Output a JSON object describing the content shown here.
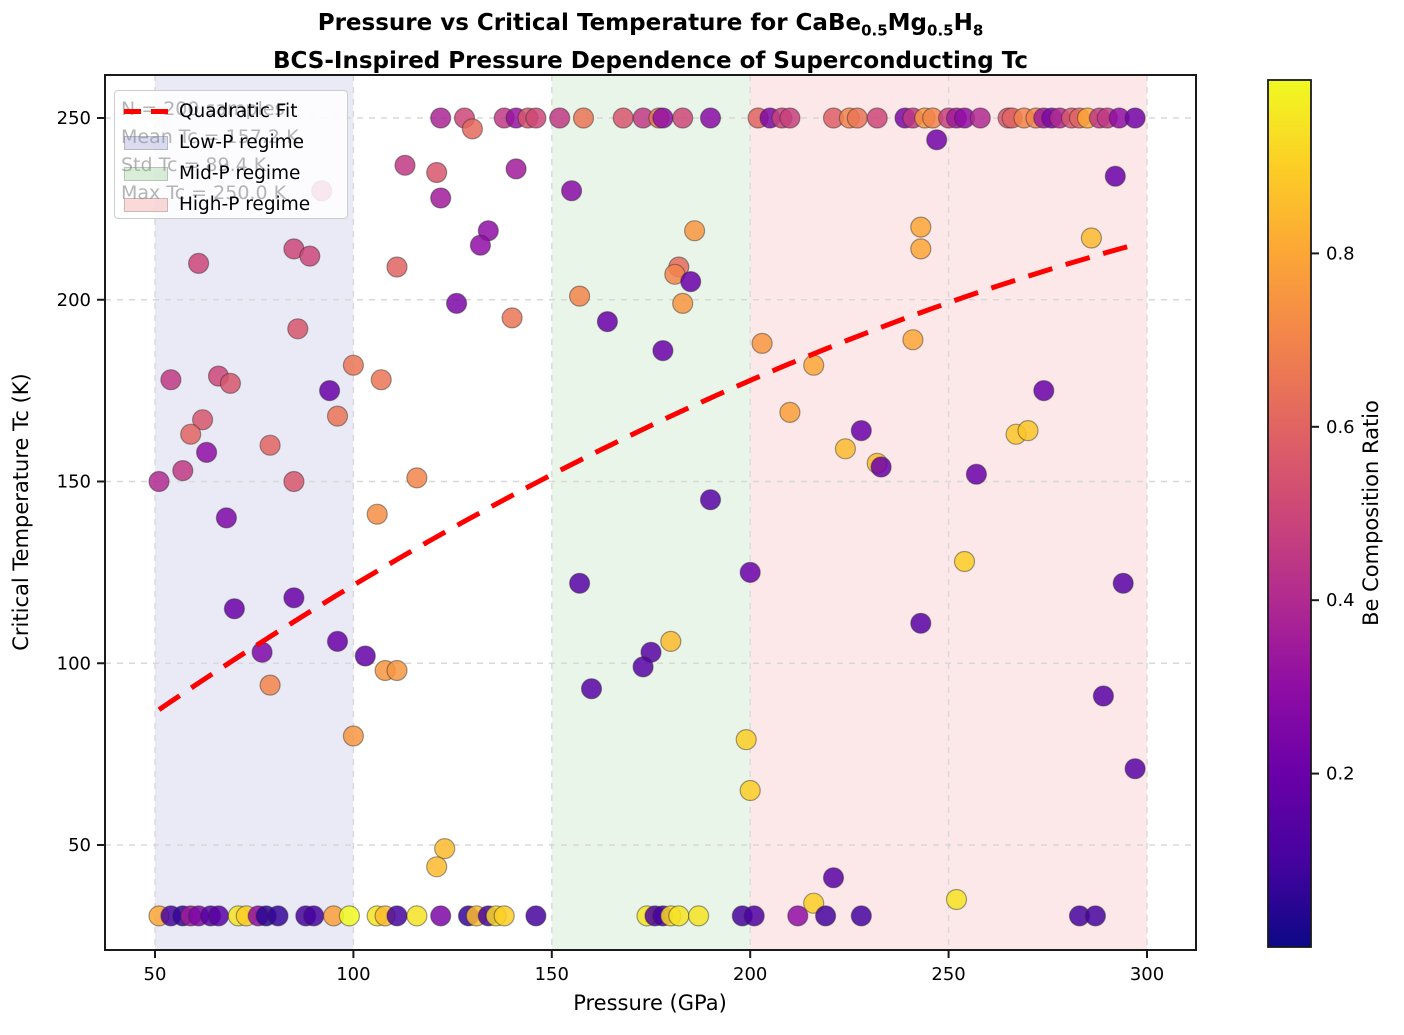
{
  "title": {
    "prefix": "Pressure vs Critical Temperature for CaBe",
    "sub1": "0.5",
    "mid1": "Mg",
    "sub2": "0.5",
    "mid2": "H",
    "sub3": "8",
    "line2": "BCS-Inspired Pressure Dependence of Superconducting Tc"
  },
  "axes": {
    "xlabel": "Pressure (GPa)",
    "ylabel": "Critical Temperature Tc (K)",
    "x_ticks": [
      50,
      100,
      150,
      200,
      250,
      300
    ],
    "y_ticks": [
      50,
      100,
      150,
      200,
      250
    ]
  },
  "colorbar": {
    "label": "Be Composition Ratio",
    "ticks": [
      0.2,
      0.4,
      0.6,
      0.8
    ],
    "range": [
      0,
      1
    ],
    "colormap": "plasma",
    "colormap_stops": [
      [
        0.0,
        "#0d0887"
      ],
      [
        0.1,
        "#46039f"
      ],
      [
        0.2,
        "#6a00a8"
      ],
      [
        0.3,
        "#8f0da4"
      ],
      [
        0.4,
        "#b12a90"
      ],
      [
        0.5,
        "#cc4778"
      ],
      [
        0.6,
        "#e16462"
      ],
      [
        0.7,
        "#f2844b"
      ],
      [
        0.8,
        "#fca636"
      ],
      [
        0.9,
        "#fcce25"
      ],
      [
        1.0,
        "#f0f921"
      ]
    ]
  },
  "legend": {
    "items": [
      {
        "label": "Quadratic Fit",
        "type": "line",
        "color": "#ff0000"
      },
      {
        "label": "Low-P regime",
        "type": "patch",
        "rgb": [
          136,
          136,
          204
        ],
        "alpha": 0.3
      },
      {
        "label": "Mid-P regime",
        "type": "patch",
        "rgb": [
          120,
          190,
          120
        ],
        "alpha": 0.28
      },
      {
        "label": "High-P regime",
        "type": "patch",
        "rgb": [
          240,
          128,
          128
        ],
        "alpha": 0.3
      }
    ]
  },
  "stats_box": {
    "lines": [
      "N = 200 samples",
      "Mean Tc = 157.2 K",
      "Std Tc = 89.4 K",
      "Max Tc = 250.0 K"
    ]
  },
  "chart_data": {
    "type": "scatter",
    "title": "Pressure vs Critical Temperature for CaBe0.5Mg0.5H8 — BCS-Inspired Pressure Dependence of Superconducting Tc",
    "xlabel": "Pressure (GPa)",
    "ylabel": "Critical Temperature Tc (K)",
    "xlim": [
      37.5,
      312.5
    ],
    "ylim": [
      21,
      262
    ],
    "grid": true,
    "color_label": "Be Composition Ratio",
    "color_range": [
      0,
      1
    ],
    "regions": [
      {
        "label": "Low-P regime",
        "x0": 50,
        "x1": 100,
        "rgb": [
          136,
          136,
          204
        ],
        "alpha": 0.18
      },
      {
        "label": "Mid-P regime",
        "x0": 150,
        "x1": 200,
        "rgb": [
          120,
          190,
          120
        ],
        "alpha": 0.16
      },
      {
        "label": "High-P regime",
        "x0": 200,
        "x1": 300,
        "rgb": [
          240,
          128,
          128
        ],
        "alpha": 0.18
      }
    ],
    "fit": {
      "label": "Quadratic Fit",
      "a": 47.0,
      "b": 0.835,
      "c": -0.000905,
      "p_min": 51,
      "p_max": 297,
      "color": "#ff0000"
    },
    "points_format": [
      "pressure_gpa",
      "tc_k",
      "be_ratio"
    ],
    "points": [
      [
        122,
        250,
        0.38
      ],
      [
        128,
        250,
        0.5
      ],
      [
        130,
        247,
        0.62
      ],
      [
        138,
        250,
        0.45
      ],
      [
        141,
        250,
        0.32
      ],
      [
        144,
        250,
        0.55
      ],
      [
        146,
        250,
        0.5
      ],
      [
        152,
        250,
        0.45
      ],
      [
        158,
        250,
        0.65
      ],
      [
        168,
        250,
        0.55
      ],
      [
        173,
        250,
        0.45
      ],
      [
        177,
        250,
        0.65
      ],
      [
        178,
        250,
        0.3
      ],
      [
        183,
        250,
        0.5
      ],
      [
        190,
        250,
        0.28
      ],
      [
        202,
        250,
        0.6
      ],
      [
        205,
        250,
        0.25
      ],
      [
        208,
        250,
        0.48
      ],
      [
        210,
        250,
        0.48
      ],
      [
        221,
        250,
        0.58
      ],
      [
        225,
        250,
        0.7
      ],
      [
        227,
        250,
        0.65
      ],
      [
        232,
        250,
        0.5
      ],
      [
        239,
        250,
        0.25
      ],
      [
        241,
        250,
        0.45
      ],
      [
        244,
        250,
        0.75
      ],
      [
        246,
        250,
        0.7
      ],
      [
        250,
        250,
        0.48
      ],
      [
        252,
        250,
        0.35
      ],
      [
        254,
        250,
        0.3
      ],
      [
        258,
        250,
        0.4
      ],
      [
        265,
        250,
        0.55
      ],
      [
        266,
        250,
        0.6
      ],
      [
        269,
        250,
        0.7
      ],
      [
        272,
        250,
        0.7
      ],
      [
        274,
        250,
        0.35
      ],
      [
        276,
        250,
        0.25
      ],
      [
        278,
        250,
        0.4
      ],
      [
        281,
        250,
        0.55
      ],
      [
        283,
        250,
        0.6
      ],
      [
        285,
        250,
        0.8
      ],
      [
        288,
        250,
        0.45
      ],
      [
        290,
        250,
        0.45
      ],
      [
        293,
        250,
        0.3
      ],
      [
        297,
        250,
        0.22
      ],
      [
        113,
        237,
        0.45
      ],
      [
        121,
        235,
        0.55
      ],
      [
        122,
        228,
        0.35
      ],
      [
        141,
        236,
        0.35
      ],
      [
        155,
        230,
        0.28
      ],
      [
        134,
        219,
        0.3
      ],
      [
        132,
        215,
        0.3
      ],
      [
        92,
        230,
        0.5
      ],
      [
        61,
        210,
        0.5
      ],
      [
        85,
        214,
        0.5
      ],
      [
        89,
        212,
        0.5
      ],
      [
        111,
        209,
        0.6
      ],
      [
        126,
        199,
        0.25
      ],
      [
        86,
        192,
        0.55
      ],
      [
        100,
        182,
        0.65
      ],
      [
        107,
        178,
        0.65
      ],
      [
        54,
        178,
        0.45
      ],
      [
        66,
        179,
        0.5
      ],
      [
        69,
        177,
        0.55
      ],
      [
        94,
        175,
        0.2
      ],
      [
        96,
        168,
        0.65
      ],
      [
        62,
        167,
        0.55
      ],
      [
        59,
        163,
        0.6
      ],
      [
        63,
        158,
        0.3
      ],
      [
        57,
        153,
        0.45
      ],
      [
        51,
        150,
        0.4
      ],
      [
        79,
        160,
        0.6
      ],
      [
        85,
        150,
        0.55
      ],
      [
        116,
        151,
        0.7
      ],
      [
        106,
        141,
        0.73
      ],
      [
        68,
        140,
        0.25
      ],
      [
        70,
        115,
        0.2
      ],
      [
        85,
        118,
        0.2
      ],
      [
        96,
        106,
        0.2
      ],
      [
        103,
        102,
        0.18
      ],
      [
        77,
        103,
        0.25
      ],
      [
        108,
        98,
        0.75
      ],
      [
        111,
        98,
        0.75
      ],
      [
        79,
        94,
        0.7
      ],
      [
        100,
        80,
        0.75
      ],
      [
        123,
        49,
        0.85
      ],
      [
        121,
        44,
        0.85
      ],
      [
        186,
        219,
        0.75
      ],
      [
        182,
        209,
        0.62
      ],
      [
        181,
        207,
        0.7
      ],
      [
        185,
        205,
        0.2
      ],
      [
        183,
        199,
        0.75
      ],
      [
        157,
        201,
        0.7
      ],
      [
        140,
        195,
        0.65
      ],
      [
        164,
        194,
        0.2
      ],
      [
        178,
        186,
        0.2
      ],
      [
        203,
        188,
        0.75
      ],
      [
        216,
        182,
        0.8
      ],
      [
        210,
        169,
        0.78
      ],
      [
        224,
        159,
        0.85
      ],
      [
        190,
        145,
        0.15
      ],
      [
        247,
        244,
        0.22
      ],
      [
        292,
        234,
        0.2
      ],
      [
        243,
        220,
        0.8
      ],
      [
        243,
        214,
        0.8
      ],
      [
        286,
        217,
        0.85
      ],
      [
        241,
        189,
        0.8
      ],
      [
        274,
        175,
        0.2
      ],
      [
        267,
        163,
        0.88
      ],
      [
        270,
        164,
        0.88
      ],
      [
        228,
        164,
        0.2
      ],
      [
        232,
        155,
        0.85
      ],
      [
        233,
        154,
        0.2
      ],
      [
        257,
        152,
        0.2
      ],
      [
        157,
        122,
        0.15
      ],
      [
        200,
        125,
        0.2
      ],
      [
        180,
        106,
        0.85
      ],
      [
        175,
        103,
        0.15
      ],
      [
        173,
        99,
        0.15
      ],
      [
        160,
        93,
        0.15
      ],
      [
        199,
        79,
        0.9
      ],
      [
        200,
        65,
        0.9
      ],
      [
        221,
        41,
        0.15
      ],
      [
        216,
        34,
        0.9
      ],
      [
        254,
        128,
        0.9
      ],
      [
        294,
        122,
        0.15
      ],
      [
        243,
        111,
        0.15
      ],
      [
        289,
        91,
        0.15
      ],
      [
        297,
        71,
        0.15
      ],
      [
        252,
        35,
        0.95
      ],
      [
        51,
        30.5,
        0.8
      ],
      [
        54,
        30.5,
        0.1
      ],
      [
        57,
        30.5,
        0.07
      ],
      [
        59,
        30.5,
        0.35
      ],
      [
        61,
        30.5,
        0.25
      ],
      [
        64,
        30.5,
        0.15
      ],
      [
        66,
        30.5,
        0.15
      ],
      [
        71,
        30.5,
        0.95
      ],
      [
        73,
        30.5,
        0.9
      ],
      [
        76,
        30.5,
        0.3
      ],
      [
        78,
        30.5,
        0.05
      ],
      [
        81,
        30.5,
        0.07
      ],
      [
        88,
        30.5,
        0.1
      ],
      [
        90,
        30.5,
        0.1
      ],
      [
        95,
        30.5,
        0.78
      ],
      [
        99,
        30.5,
        1.0
      ],
      [
        106,
        30.5,
        0.95
      ],
      [
        108,
        30.5,
        0.85
      ],
      [
        111,
        30.5,
        0.1
      ],
      [
        116,
        30.5,
        0.95
      ],
      [
        122,
        30.5,
        0.25
      ],
      [
        129,
        30.5,
        0.07
      ],
      [
        131,
        30.5,
        0.85
      ],
      [
        134,
        30.5,
        0.1
      ],
      [
        136,
        30.5,
        0.92
      ],
      [
        138,
        30.5,
        0.9
      ],
      [
        146,
        30.5,
        0.1
      ],
      [
        174,
        30.5,
        0.95
      ],
      [
        176,
        30.5,
        0.12
      ],
      [
        178,
        30.5,
        0.1
      ],
      [
        180,
        30.5,
        0.92
      ],
      [
        182,
        30.5,
        0.95
      ],
      [
        187,
        30.5,
        0.95
      ],
      [
        198,
        30.5,
        0.1
      ],
      [
        201,
        30.5,
        0.12
      ],
      [
        212,
        30.5,
        0.3
      ],
      [
        219,
        30.5,
        0.1
      ],
      [
        228,
        30.5,
        0.1
      ],
      [
        283,
        30.5,
        0.1
      ],
      [
        287,
        30.5,
        0.1
      ]
    ]
  }
}
